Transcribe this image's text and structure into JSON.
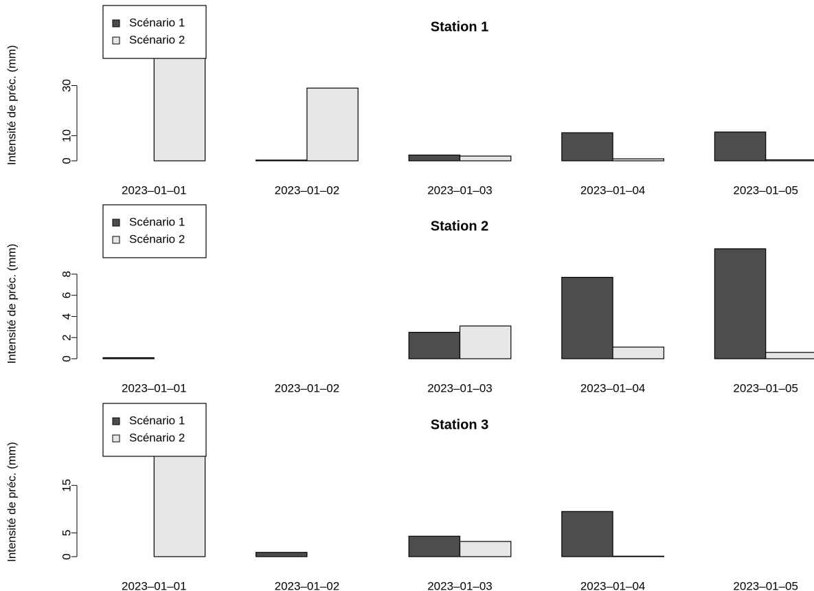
{
  "chart_data": [
    {
      "type": "bar",
      "title": "Station 1",
      "y_label": "Intensité de préc. (mm)",
      "categories": [
        "2023–01–01",
        "2023–01–02",
        "2023–01–03",
        "2023–01–04",
        "2023–01–05"
      ],
      "series": [
        {
          "name": "Scénario 1",
          "color": "#4d4d4d",
          "values": [
            0,
            0.3,
            2.3,
            11.2,
            11.5
          ]
        },
        {
          "name": "Scénario 2",
          "color": "#e6e6e6",
          "values": [
            44.1,
            29,
            1.9,
            0.8,
            0.4
          ]
        }
      ],
      "ylim": [
        0,
        44.4
      ],
      "yticks": [
        0,
        10,
        30
      ],
      "legend": "top-left"
    },
    {
      "type": "bar",
      "title": "Station 2",
      "y_label": "Intensité de préc. (mm)",
      "categories": [
        "2023–01–01",
        "2023–01–02",
        "2023–01–03",
        "2023–01–04",
        "2023–01–05"
      ],
      "series": [
        {
          "name": "Scénario 1",
          "color": "#4d4d4d",
          "values": [
            0.1,
            0,
            2.5,
            7.7,
            10.4
          ]
        },
        {
          "name": "Scénario 2",
          "color": "#e6e6e6",
          "values": [
            0,
            0,
            3.1,
            1.1,
            0.6
          ]
        }
      ],
      "ylim": [
        0,
        10.4
      ],
      "yticks": [
        0,
        2,
        4,
        6,
        8
      ],
      "legend": "top-left"
    },
    {
      "type": "bar",
      "title": "Station 3",
      "y_label": "Intensité de préc. (mm)",
      "categories": [
        "2023–01–01",
        "2023–01–02",
        "2023–01–03",
        "2023–01–04",
        "2023–01–05"
      ],
      "series": [
        {
          "name": "Scénario 1",
          "color": "#4d4d4d",
          "values": [
            0,
            0.9,
            4.3,
            9.5,
            0
          ]
        },
        {
          "name": "Scénario 2",
          "color": "#e6e6e6",
          "values": [
            23,
            0,
            3.2,
            0.1,
            0
          ]
        }
      ],
      "ylim": [
        0,
        23
      ],
      "yticks": [
        0,
        5,
        15
      ],
      "legend": "top-left"
    }
  ]
}
